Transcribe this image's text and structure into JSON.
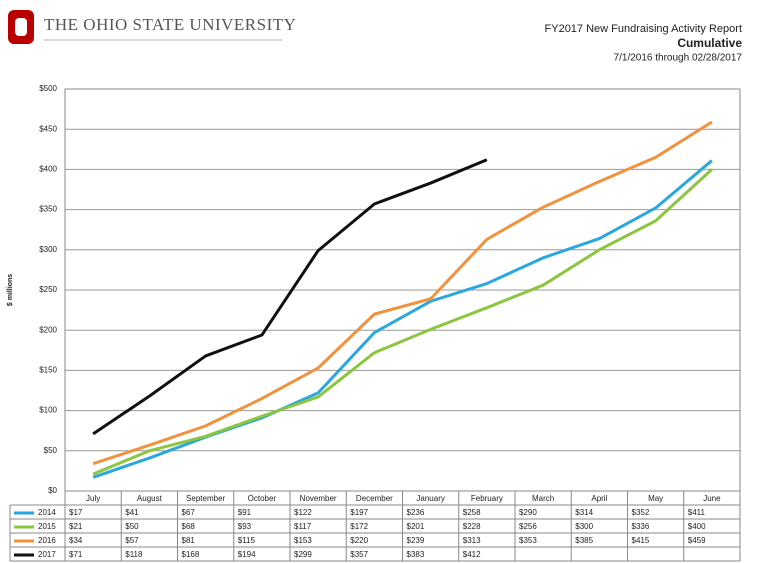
{
  "header": {
    "title": "THE OHIO STATE UNIVERSITY"
  },
  "chart_data": {
    "type": "line",
    "title": "FY2017 New Fundraising Activity Report",
    "subtitle": "Cumulative",
    "date_range": "7/1/2016 through 02/28/2017",
    "y_label": "$ millions",
    "categories": [
      "July",
      "August",
      "September",
      "October",
      "November",
      "December",
      "January",
      "February",
      "March",
      "April",
      "May",
      "June"
    ],
    "ylim": [
      0,
      500
    ],
    "yticks": [
      {
        "value": 0,
        "label": "$0"
      },
      {
        "value": 50,
        "label": "$50"
      },
      {
        "value": 100,
        "label": "$100"
      },
      {
        "value": 150,
        "label": "$150"
      },
      {
        "value": 200,
        "label": "$200"
      },
      {
        "value": 250,
        "label": "$250"
      },
      {
        "value": 300,
        "label": "$300"
      },
      {
        "value": 350,
        "label": "$350"
      },
      {
        "value": 400,
        "label": "$400"
      },
      {
        "value": 450,
        "label": "$450"
      },
      {
        "value": 500,
        "label": "$500"
      }
    ],
    "grid": true,
    "series": [
      {
        "name": "2014",
        "color": "#2aa7df",
        "values": [
          17,
          41,
          67,
          91,
          122,
          197,
          236,
          258,
          290,
          314,
          352,
          411
        ],
        "value_labels": [
          "$17",
          "$41",
          "$67",
          "$91",
          "$122",
          "$197",
          "$236",
          "$258",
          "$290",
          "$314",
          "$352",
          "$411"
        ]
      },
      {
        "name": "2015",
        "color": "#8cc63f",
        "values": [
          21,
          50,
          68,
          93,
          117,
          172,
          201,
          228,
          256,
          300,
          336,
          400
        ],
        "value_labels": [
          "$21",
          "$50",
          "$68",
          "$93",
          "$117",
          "$172",
          "$201",
          "$228",
          "$256",
          "$300",
          "$336",
          "$400"
        ]
      },
      {
        "name": "2016",
        "color": "#f0923e",
        "values": [
          34,
          57,
          81,
          115,
          153,
          220,
          239,
          313,
          353,
          385,
          415,
          459
        ],
        "value_labels": [
          "$34",
          "$57",
          "$81",
          "$115",
          "$153",
          "$220",
          "$239",
          "$313",
          "$353",
          "$385",
          "$415",
          "$459"
        ]
      },
      {
        "name": "2017",
        "color": "#111111",
        "values": [
          71,
          118,
          168,
          194,
          299,
          357,
          383,
          412,
          null,
          null,
          null,
          null
        ],
        "value_labels": [
          "$71",
          "$118",
          "$168",
          "$194",
          "$299",
          "$357",
          "$383",
          "$412",
          null,
          null,
          null,
          null
        ]
      }
    ]
  }
}
